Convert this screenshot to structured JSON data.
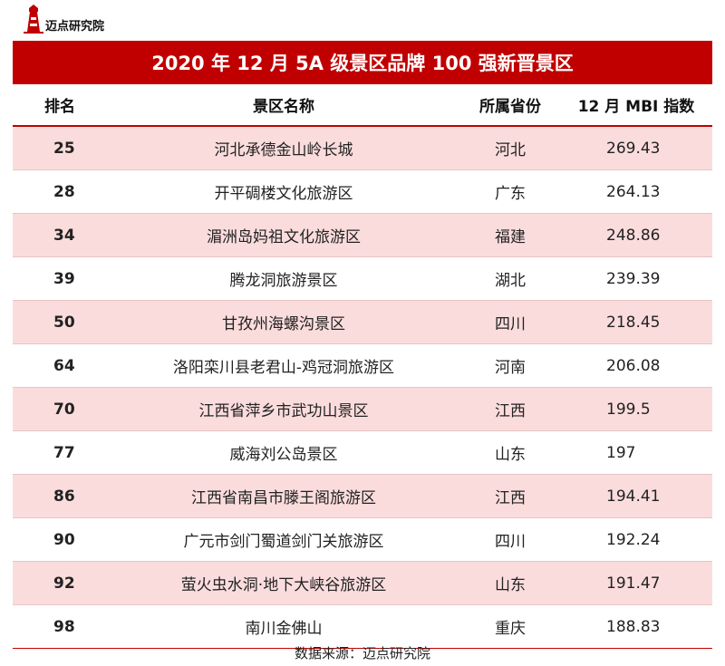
{
  "brand": {
    "name": "迈点研究院",
    "accent_color": "#c00000"
  },
  "title": "2020 年 12 月 5A 级景区品牌 100 强新晋景区",
  "columns": [
    "排名",
    "景区名称",
    "所属省份",
    "12 月 MBI 指数"
  ],
  "rows": [
    {
      "rank": "25",
      "name": "河北承德金山岭长城",
      "province": "河北",
      "mbi": "269.43"
    },
    {
      "rank": "28",
      "name": "开平碉楼文化旅游区",
      "province": "广东",
      "mbi": "264.13"
    },
    {
      "rank": "34",
      "name": "湄洲岛妈祖文化旅游区",
      "province": "福建",
      "mbi": "248.86"
    },
    {
      "rank": "39",
      "name": "腾龙洞旅游景区",
      "province": "湖北",
      "mbi": "239.39"
    },
    {
      "rank": "50",
      "name": "甘孜州海螺沟景区",
      "province": "四川",
      "mbi": "218.45"
    },
    {
      "rank": "64",
      "name": "洛阳栾川县老君山-鸡冠洞旅游区",
      "province": "河南",
      "mbi": "206.08"
    },
    {
      "rank": "70",
      "name": "江西省萍乡市武功山景区",
      "province": "江西",
      "mbi": "199.5"
    },
    {
      "rank": "77",
      "name": "威海刘公岛景区",
      "province": "山东",
      "mbi": "197"
    },
    {
      "rank": "86",
      "name": "江西省南昌市滕王阁旅游区",
      "province": "江西",
      "mbi": "194.41"
    },
    {
      "rank": "90",
      "name": "广元市剑门蜀道剑门关旅游区",
      "province": "四川",
      "mbi": "192.24"
    },
    {
      "rank": "92",
      "name": "萤火虫水洞·地下大峡谷旅游区",
      "province": "山东",
      "mbi": "191.47"
    },
    {
      "rank": "98",
      "name": "南川金佛山",
      "province": "重庆",
      "mbi": "188.83"
    }
  ],
  "source": "数据来源：迈点研究院",
  "chart_data": {
    "type": "table",
    "title": "2020 年 12 月 5A 级景区品牌 100 强新晋景区",
    "columns": [
      "排名",
      "景区名称",
      "所属省份",
      "12 月 MBI 指数"
    ],
    "rows": [
      [
        25,
        "河北承德金山岭长城",
        "河北",
        269.43
      ],
      [
        28,
        "开平碉楼文化旅游区",
        "广东",
        264.13
      ],
      [
        34,
        "湄洲岛妈祖文化旅游区",
        "福建",
        248.86
      ],
      [
        39,
        "腾龙洞旅游景区",
        "湖北",
        239.39
      ],
      [
        50,
        "甘孜州海螺沟景区",
        "四川",
        218.45
      ],
      [
        64,
        "洛阳栾川县老君山-鸡冠洞旅游区",
        "河南",
        206.08
      ],
      [
        70,
        "江西省萍乡市武功山景区",
        "江西",
        199.5
      ],
      [
        77,
        "威海刘公岛景区",
        "山东",
        197
      ],
      [
        86,
        "江西省南昌市滕王阁旅游区",
        "江西",
        194.41
      ],
      [
        90,
        "广元市剑门蜀道剑门关旅游区",
        "四川",
        192.24
      ],
      [
        92,
        "萤火虫水洞·地下大峡谷旅游区",
        "山东",
        191.47
      ],
      [
        98,
        "南川金佛山",
        "重庆",
        188.83
      ]
    ]
  }
}
